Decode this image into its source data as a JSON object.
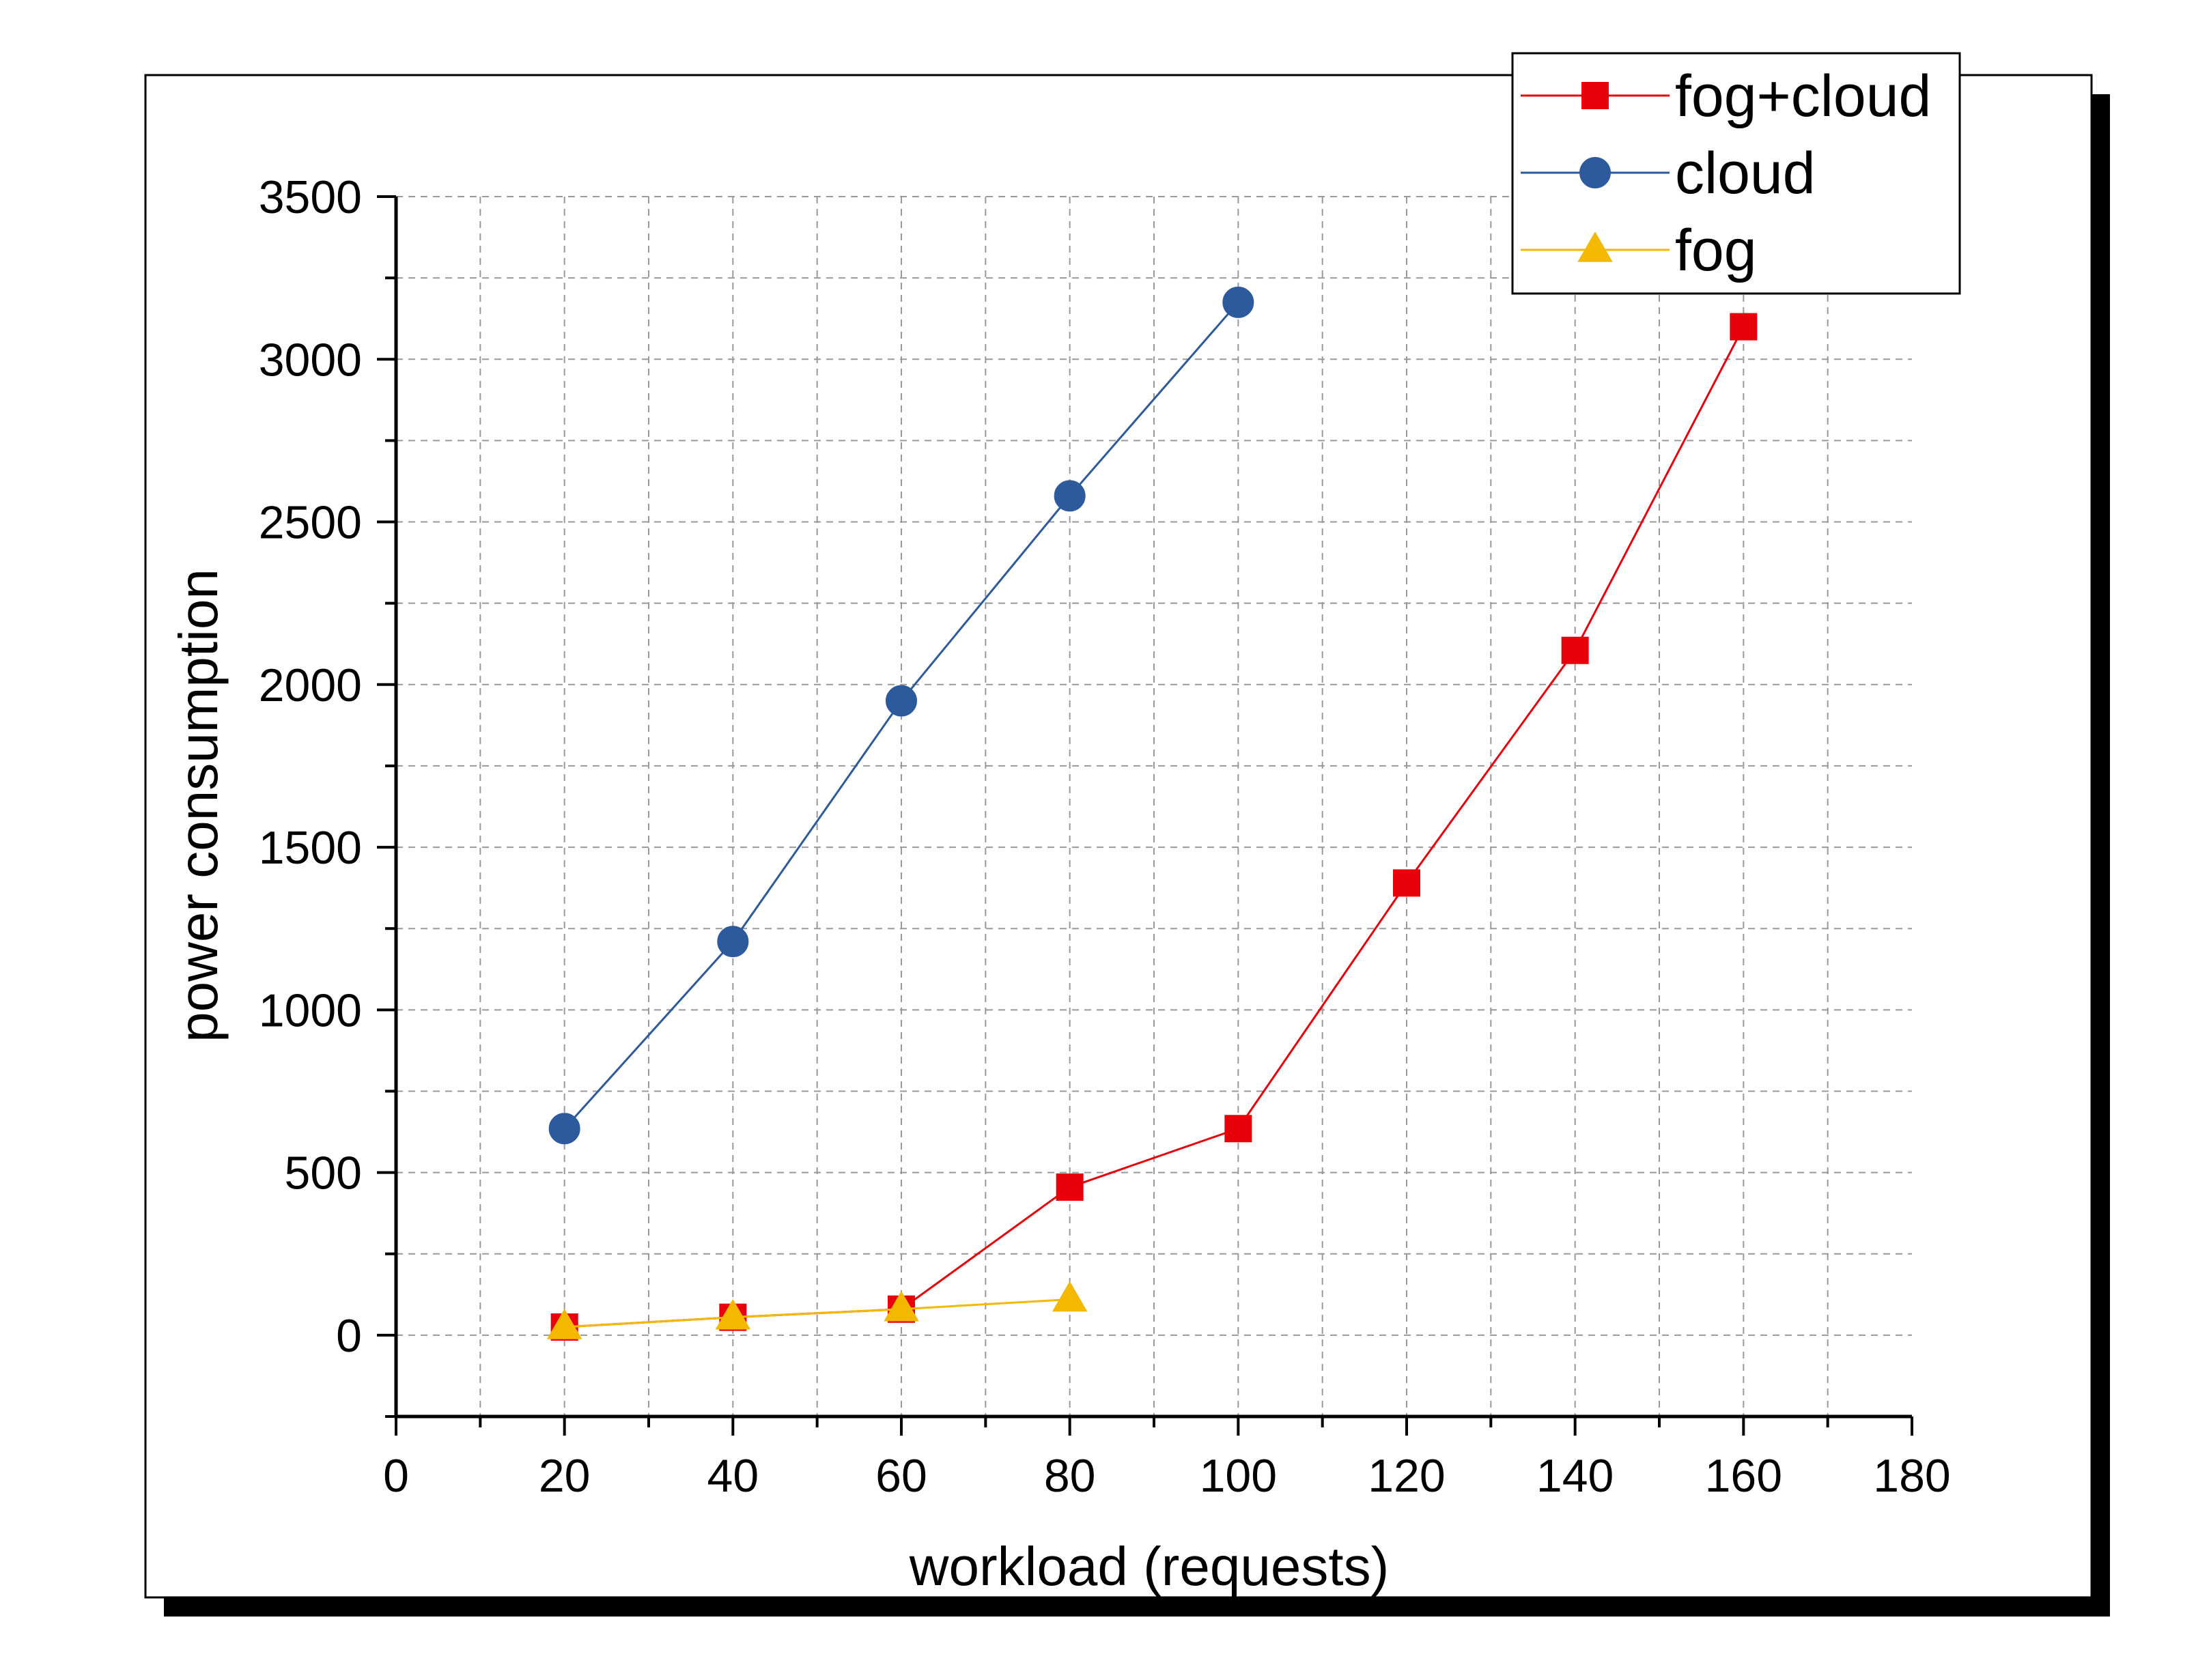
{
  "chart_data": {
    "type": "line",
    "title": "",
    "xlabel": "workload (requests)",
    "ylabel": "power consumption",
    "xlim": [
      0,
      180
    ],
    "ylim": [
      -250,
      3500
    ],
    "x_ticks": [
      "0",
      "20",
      "40",
      "60",
      "80",
      "100",
      "120",
      "140",
      "160",
      "180"
    ],
    "y_ticks": [
      "0",
      "500",
      "1000",
      "1500",
      "2000",
      "2500",
      "3000",
      "3500"
    ],
    "grid": true,
    "legend_position": "top-right",
    "series": [
      {
        "name": "fog+cloud",
        "color": "#e8000b",
        "marker": "square",
        "x": [
          20,
          40,
          60,
          80,
          100,
          120,
          140,
          160
        ],
        "y": [
          25,
          55,
          80,
          455,
          635,
          1390,
          2105,
          3100
        ]
      },
      {
        "name": "cloud",
        "color": "#2d5a9c",
        "marker": "circle",
        "x": [
          20,
          40,
          60,
          80,
          100
        ],
        "y": [
          635,
          1210,
          1950,
          2580,
          3175
        ]
      },
      {
        "name": "fog",
        "color": "#f5b800",
        "marker": "triangle",
        "x": [
          20,
          40,
          60,
          80
        ],
        "y": [
          25,
          55,
          80,
          110
        ]
      }
    ]
  }
}
